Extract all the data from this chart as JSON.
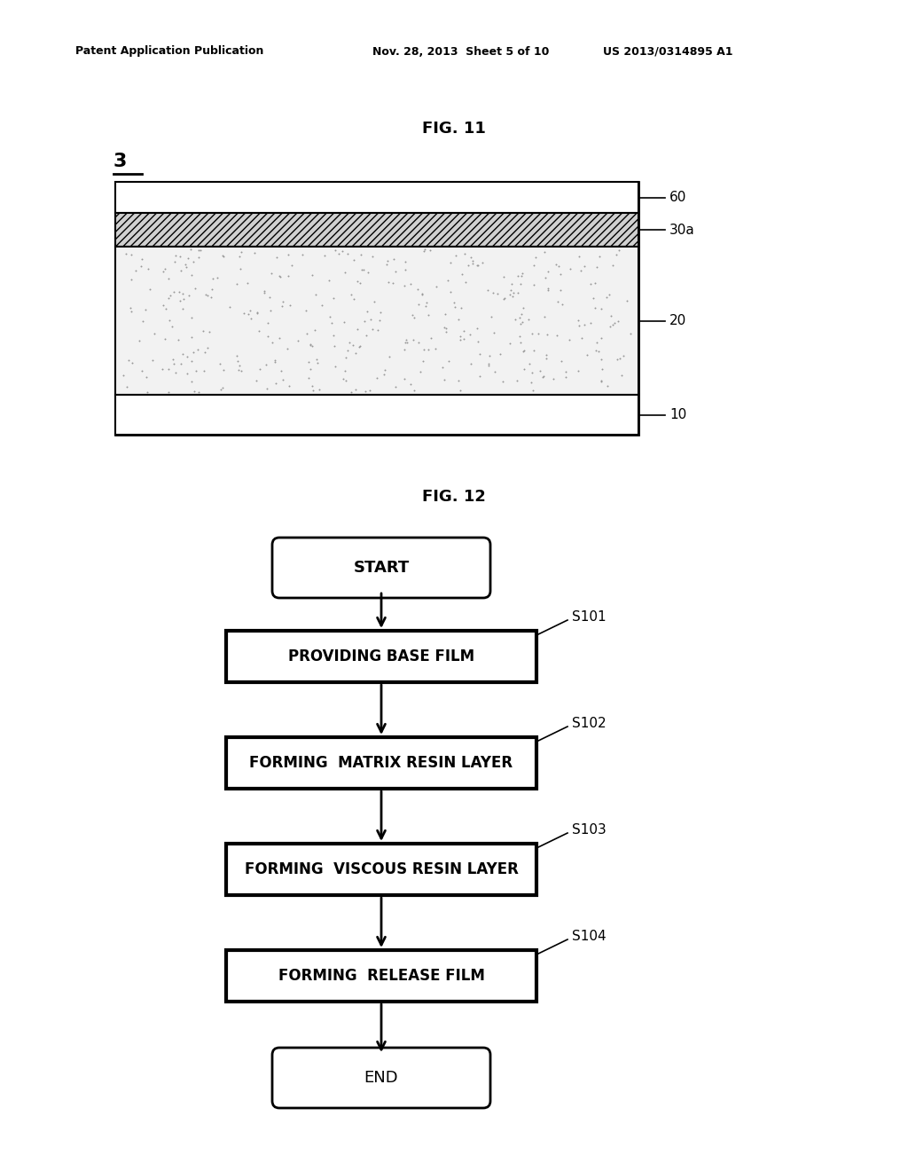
{
  "background_color": "#ffffff",
  "fig_width": 10.24,
  "fig_height": 13.2,
  "header_left": "Patent Application Publication",
  "header_mid": "Nov. 28, 2013  Sheet 5 of 10",
  "header_right": "US 2013/0314895 A1",
  "fig11_title": "FIG. 11",
  "fig12_title": "FIG. 12",
  "fig11_label": "3",
  "layer_labels": [
    "60",
    "30a",
    "20",
    "10"
  ],
  "flowchart_start": "START",
  "flowchart_end": "END",
  "flowchart_steps": [
    "PROVIDING BASE FILM",
    "FORMING  MATRIX RESIN LAYER",
    "FORMING  VISCOUS RESIN LAYER",
    "FORMING  RELEASE FILM"
  ],
  "flowchart_step_ids": [
    "S101",
    "S102",
    "S103",
    "S104"
  ]
}
